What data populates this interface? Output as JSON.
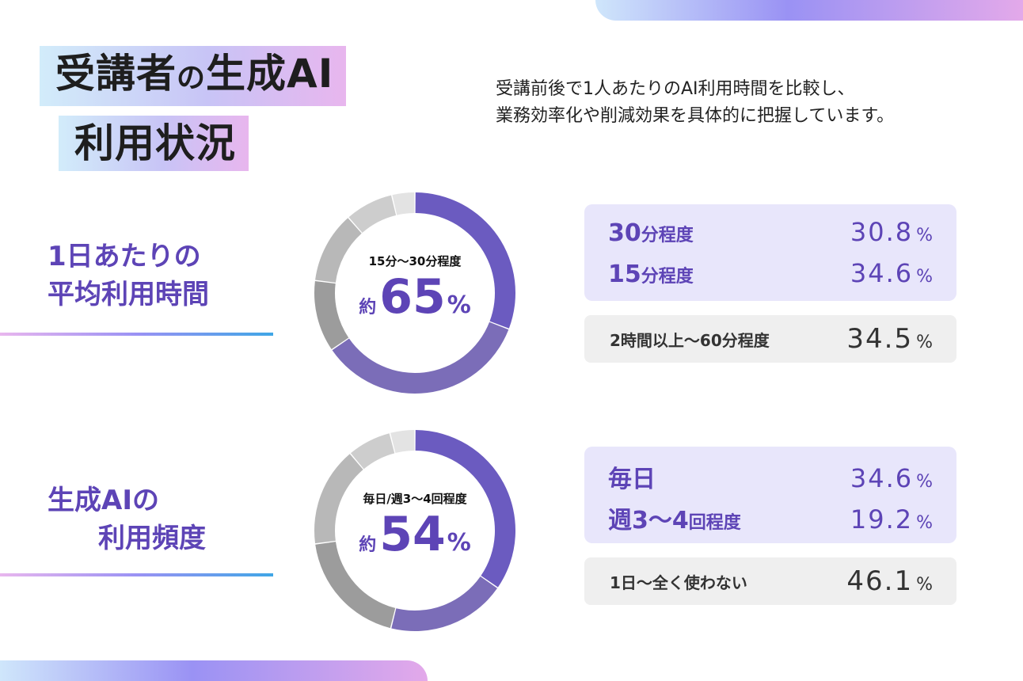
{
  "title": {
    "line1_a": "受講者",
    "line1_no": "の",
    "line1_b": "生成AI",
    "line2": "利用状況"
  },
  "intro": {
    "line1": "受講前後で1人あたりのAI利用時間を比較し、",
    "line2": "業務効率化や削減効果を具体的に把握しています。"
  },
  "sections": [
    {
      "label_line1": "1日あたりの",
      "label_line2": "平均利用時間",
      "center_caption": "15分～30分程度",
      "center_prefix": "約",
      "center_value": "65",
      "center_unit": "%",
      "highlight_rows": [
        {
          "num": "30",
          "suffix": "分程度",
          "value": "30.8",
          "unit": "%"
        },
        {
          "num": "15",
          "suffix": "分程度",
          "value": "34.6",
          "unit": "%"
        }
      ],
      "other_row": {
        "label": "2時間以上～60分程度",
        "value": "34.5",
        "unit": "%"
      }
    },
    {
      "label_line1": "生成AIの",
      "label_line2": "利用頻度",
      "center_caption": "毎日/週3～4回程度",
      "center_prefix": "約",
      "center_value": "54",
      "center_unit": "%",
      "highlight_rows": [
        {
          "num": "毎日",
          "suffix": "",
          "value": "34.6",
          "unit": "%"
        },
        {
          "num": "週3～4",
          "suffix": "回程度",
          "value": "19.2",
          "unit": "%"
        }
      ],
      "other_row": {
        "label": "1日～全く使わない",
        "value": "46.1",
        "unit": "%"
      }
    }
  ],
  "colors": {
    "accent": "#5d44b6",
    "purple_dark": "#6b5bc0",
    "purple_mid": "#7b6db8",
    "grey_dark": "#9c9c9c",
    "grey_mid": "#b8b8b8",
    "grey_light": "#cdcdcd",
    "grey_lightest": "#e3e3e3"
  },
  "chart_data": [
    {
      "type": "pie",
      "title": "",
      "values": [
        30.8,
        34.6,
        34.5
      ],
      "categories": [
        "30分程度",
        "15分程度",
        "2時間以上～60分程度"
      ],
      "display_split": [
        30.8,
        34.6,
        11.5,
        11.5,
        7.8,
        3.7
      ]
    },
    {
      "type": "pie",
      "title": "",
      "values": [
        34.6,
        19.2,
        46.1
      ],
      "categories": [
        "毎日",
        "週3～4回程度",
        "1日～全く使わない"
      ],
      "display_split": [
        34.6,
        19.2,
        19.0,
        16.0,
        7.1,
        4.0
      ]
    }
  ]
}
